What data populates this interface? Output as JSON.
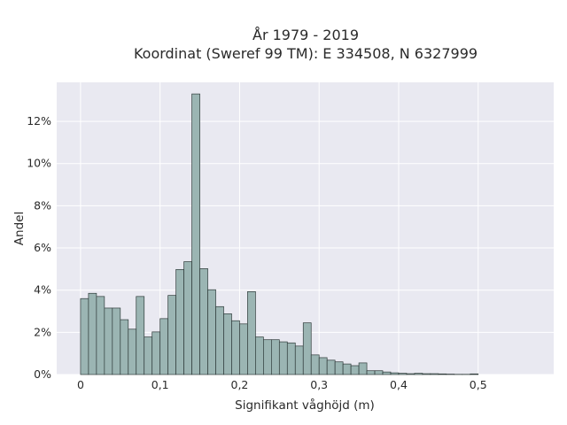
{
  "chart_data": {
    "type": "bar",
    "title_line1": "År 1979 - 2019",
    "title_line2": "Koordinat (Sweref 99 TM): E 334508, N 6327999",
    "xlabel": "Signifikant våghöjd (m)",
    "ylabel": "Andel",
    "bin_start": 0,
    "bin_width": 0.01,
    "xlim": [
      -0.03,
      0.595
    ],
    "ylim": [
      0,
      13.85
    ],
    "x_ticks": [
      0,
      0.1,
      0.2,
      0.3,
      0.4,
      0.5
    ],
    "x_tick_labels": [
      "0",
      "0,1",
      "0,2",
      "0,3",
      "0,4",
      "0,5"
    ],
    "y_ticks": [
      0,
      2,
      4,
      6,
      8,
      10,
      12
    ],
    "y_tick_labels": [
      "0%",
      "2%",
      "4%",
      "6%",
      "8%",
      "10%",
      "12%"
    ],
    "values": [
      3.6,
      3.85,
      3.7,
      3.15,
      3.15,
      2.6,
      2.15,
      3.7,
      1.78,
      2.02,
      2.65,
      3.75,
      4.98,
      5.35,
      13.3,
      5.02,
      4.02,
      3.22,
      2.88,
      2.55,
      2.4,
      3.93,
      1.78,
      1.65,
      1.65,
      1.55,
      1.5,
      1.35,
      2.45,
      0.93,
      0.8,
      0.68,
      0.6,
      0.5,
      0.42,
      0.55,
      0.18,
      0.18,
      0.12,
      0.08,
      0.06,
      0.04,
      0.06,
      0.04,
      0.04,
      0.03,
      0.02,
      0.01,
      0.01,
      0.03
    ],
    "grid": true,
    "colors": {
      "bar_fill": "#9bb5b3",
      "bar_edge": "#2f3b3a",
      "plot_bg": "#e9e9f1",
      "grid": "#ffffff"
    }
  }
}
